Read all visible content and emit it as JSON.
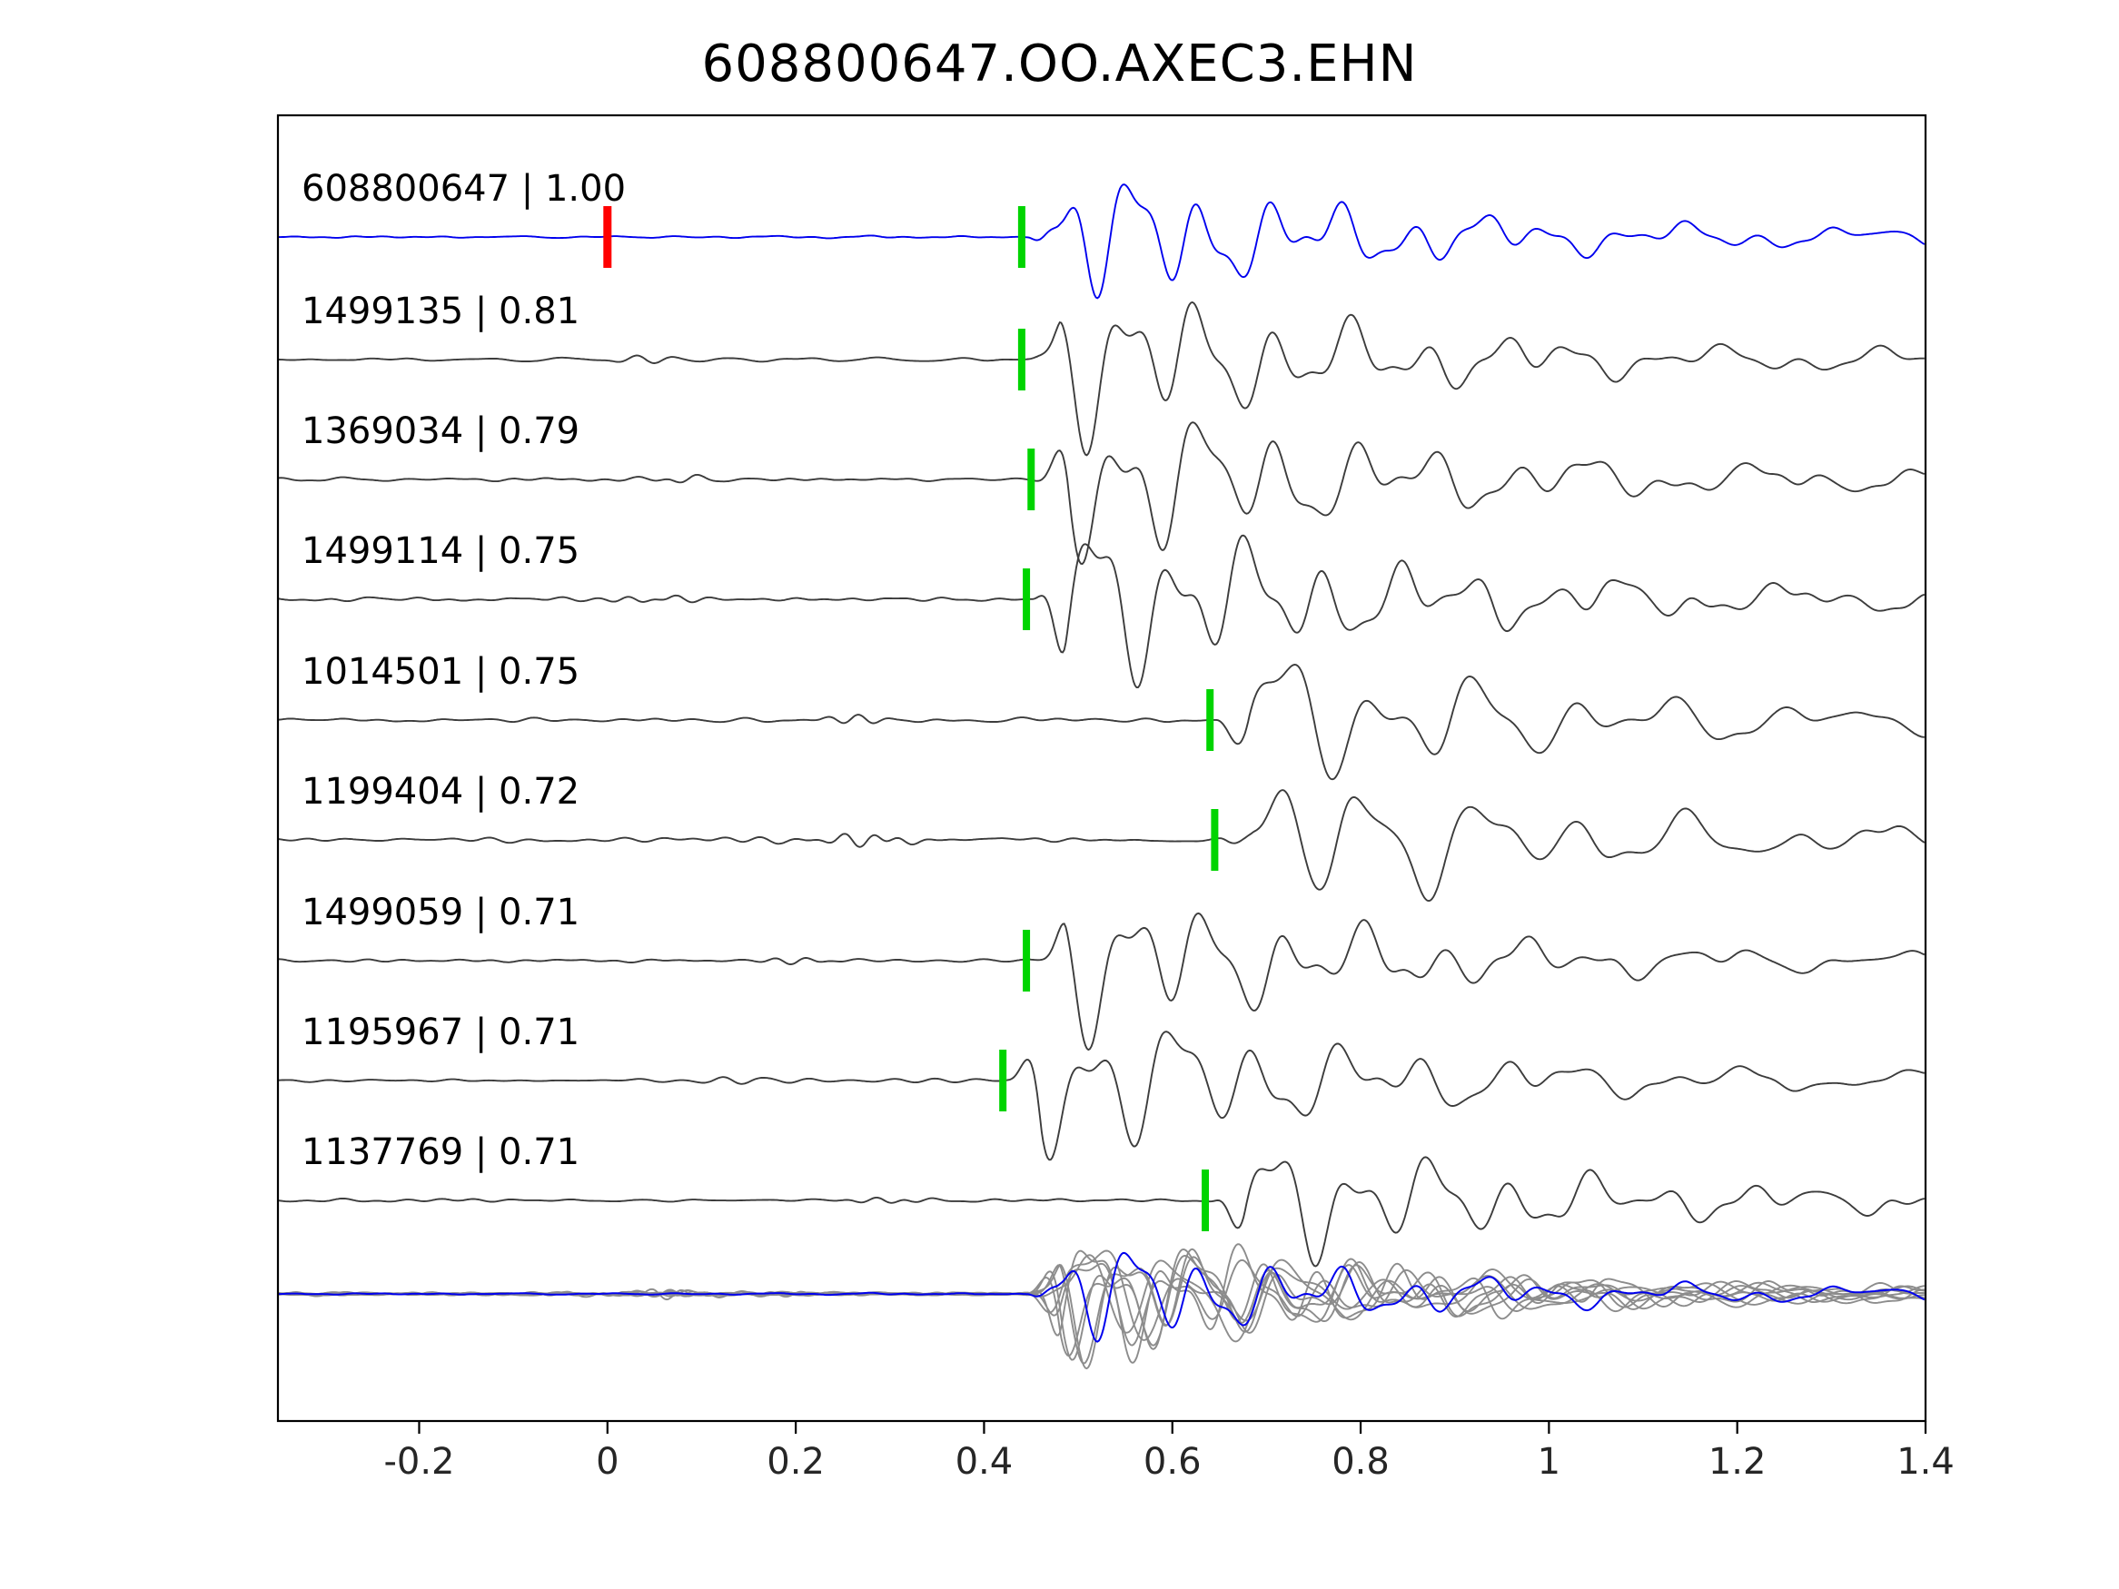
{
  "chart_data": {
    "type": "line",
    "title": "608800647.OO.AXEC3.EHN",
    "x_axis": {
      "min": -0.35,
      "max": 1.4,
      "ticks": [
        -0.2,
        0,
        0.2,
        0.4,
        0.6,
        0.8,
        1,
        1.2,
        1.4
      ],
      "tick_labels": [
        "-0.2",
        "0",
        "0.2",
        "0.4",
        "0.6",
        "0.8",
        "1",
        "1.2",
        "1.4"
      ]
    },
    "reference_marker": {
      "x": 0,
      "color": "#ff0000",
      "on_trace": "608800647"
    },
    "traces": [
      {
        "id": "608800647",
        "correlation": "1.00",
        "label": "608800647 | 1.00",
        "pick_x": 0.44,
        "is_reference": true,
        "color": "#0000ee",
        "amp": 62,
        "noise": 3.0,
        "f1": 13.5,
        "burst_x": 0.12,
        "burst_a": 1.5
      },
      {
        "id": "1499135",
        "correlation": "0.81",
        "label": "1499135 | 0.81",
        "pick_x": 0.44,
        "is_reference": false,
        "color": "#3c3c3c",
        "amp": 72,
        "noise": 4.5,
        "f1": 12.5,
        "burst_x": 0.05,
        "burst_a": 7.0
      },
      {
        "id": "1369034",
        "correlation": "0.79",
        "label": "1369034 | 0.79",
        "pick_x": 0.45,
        "is_reference": false,
        "color": "#3c3c3c",
        "amp": 76,
        "noise": 4.5,
        "f1": 12.0,
        "burst_x": 0.1,
        "burst_a": 3.0
      },
      {
        "id": "1499114",
        "correlation": "0.75",
        "label": "1499114 | 0.75",
        "pick_x": 0.445,
        "is_reference": false,
        "color": "#3c3c3c",
        "amp": 80,
        "noise": 4.5,
        "f1": 12.5,
        "burst_x": 0.05,
        "burst_a": 5.0
      },
      {
        "id": "1014501",
        "correlation": "0.75",
        "label": "1014501 | 0.75",
        "pick_x": 0.64,
        "is_reference": false,
        "color": "#3c3c3c",
        "amp": 66,
        "noise": 5.0,
        "f1": 9.5,
        "burst_x": 0.25,
        "burst_a": 8.0
      },
      {
        "id": "1199404",
        "correlation": "0.72",
        "label": "1199404 | 0.72",
        "pick_x": 0.645,
        "is_reference": false,
        "color": "#3c3c3c",
        "amp": 70,
        "noise": 6.0,
        "f1": 9.0,
        "burst_x": 0.28,
        "burst_a": 9.0
      },
      {
        "id": "1499059",
        "correlation": "0.71",
        "label": "1499059 | 0.71",
        "pick_x": 0.445,
        "is_reference": false,
        "color": "#3c3c3c",
        "amp": 66,
        "noise": 4.0,
        "f1": 12.0,
        "burst_x": 0.2,
        "burst_a": 3.0
      },
      {
        "id": "1195967",
        "correlation": "0.71",
        "label": "1195967 | 0.71",
        "pick_x": 0.42,
        "is_reference": false,
        "color": "#3c3c3c",
        "amp": 72,
        "noise": 4.5,
        "f1": 11.5,
        "burst_x": 0.15,
        "burst_a": 3.5
      },
      {
        "id": "1137769",
        "correlation": "0.71",
        "label": "1137769 | 0.71",
        "pick_x": 0.635,
        "is_reference": false,
        "color": "#3c3c3c",
        "amp": 58,
        "noise": 4.0,
        "f1": 12.0,
        "burst_x": 0.3,
        "burst_a": 3.0
      }
    ],
    "overlay": {
      "description": "all traces time-shifted to align picks and overplotted",
      "align_to_pick_x": 0.44,
      "gray_color": "#8c8c8c",
      "highlight_color": "#0000ee"
    },
    "colors": {
      "trace": "#3c3c3c",
      "reference_trace": "#0000ee",
      "pick_marker": "#00d400",
      "reference_pick_marker": "#ff0000",
      "axis": "#000000",
      "background": "#ffffff"
    },
    "legend": "none",
    "grid": false
  }
}
